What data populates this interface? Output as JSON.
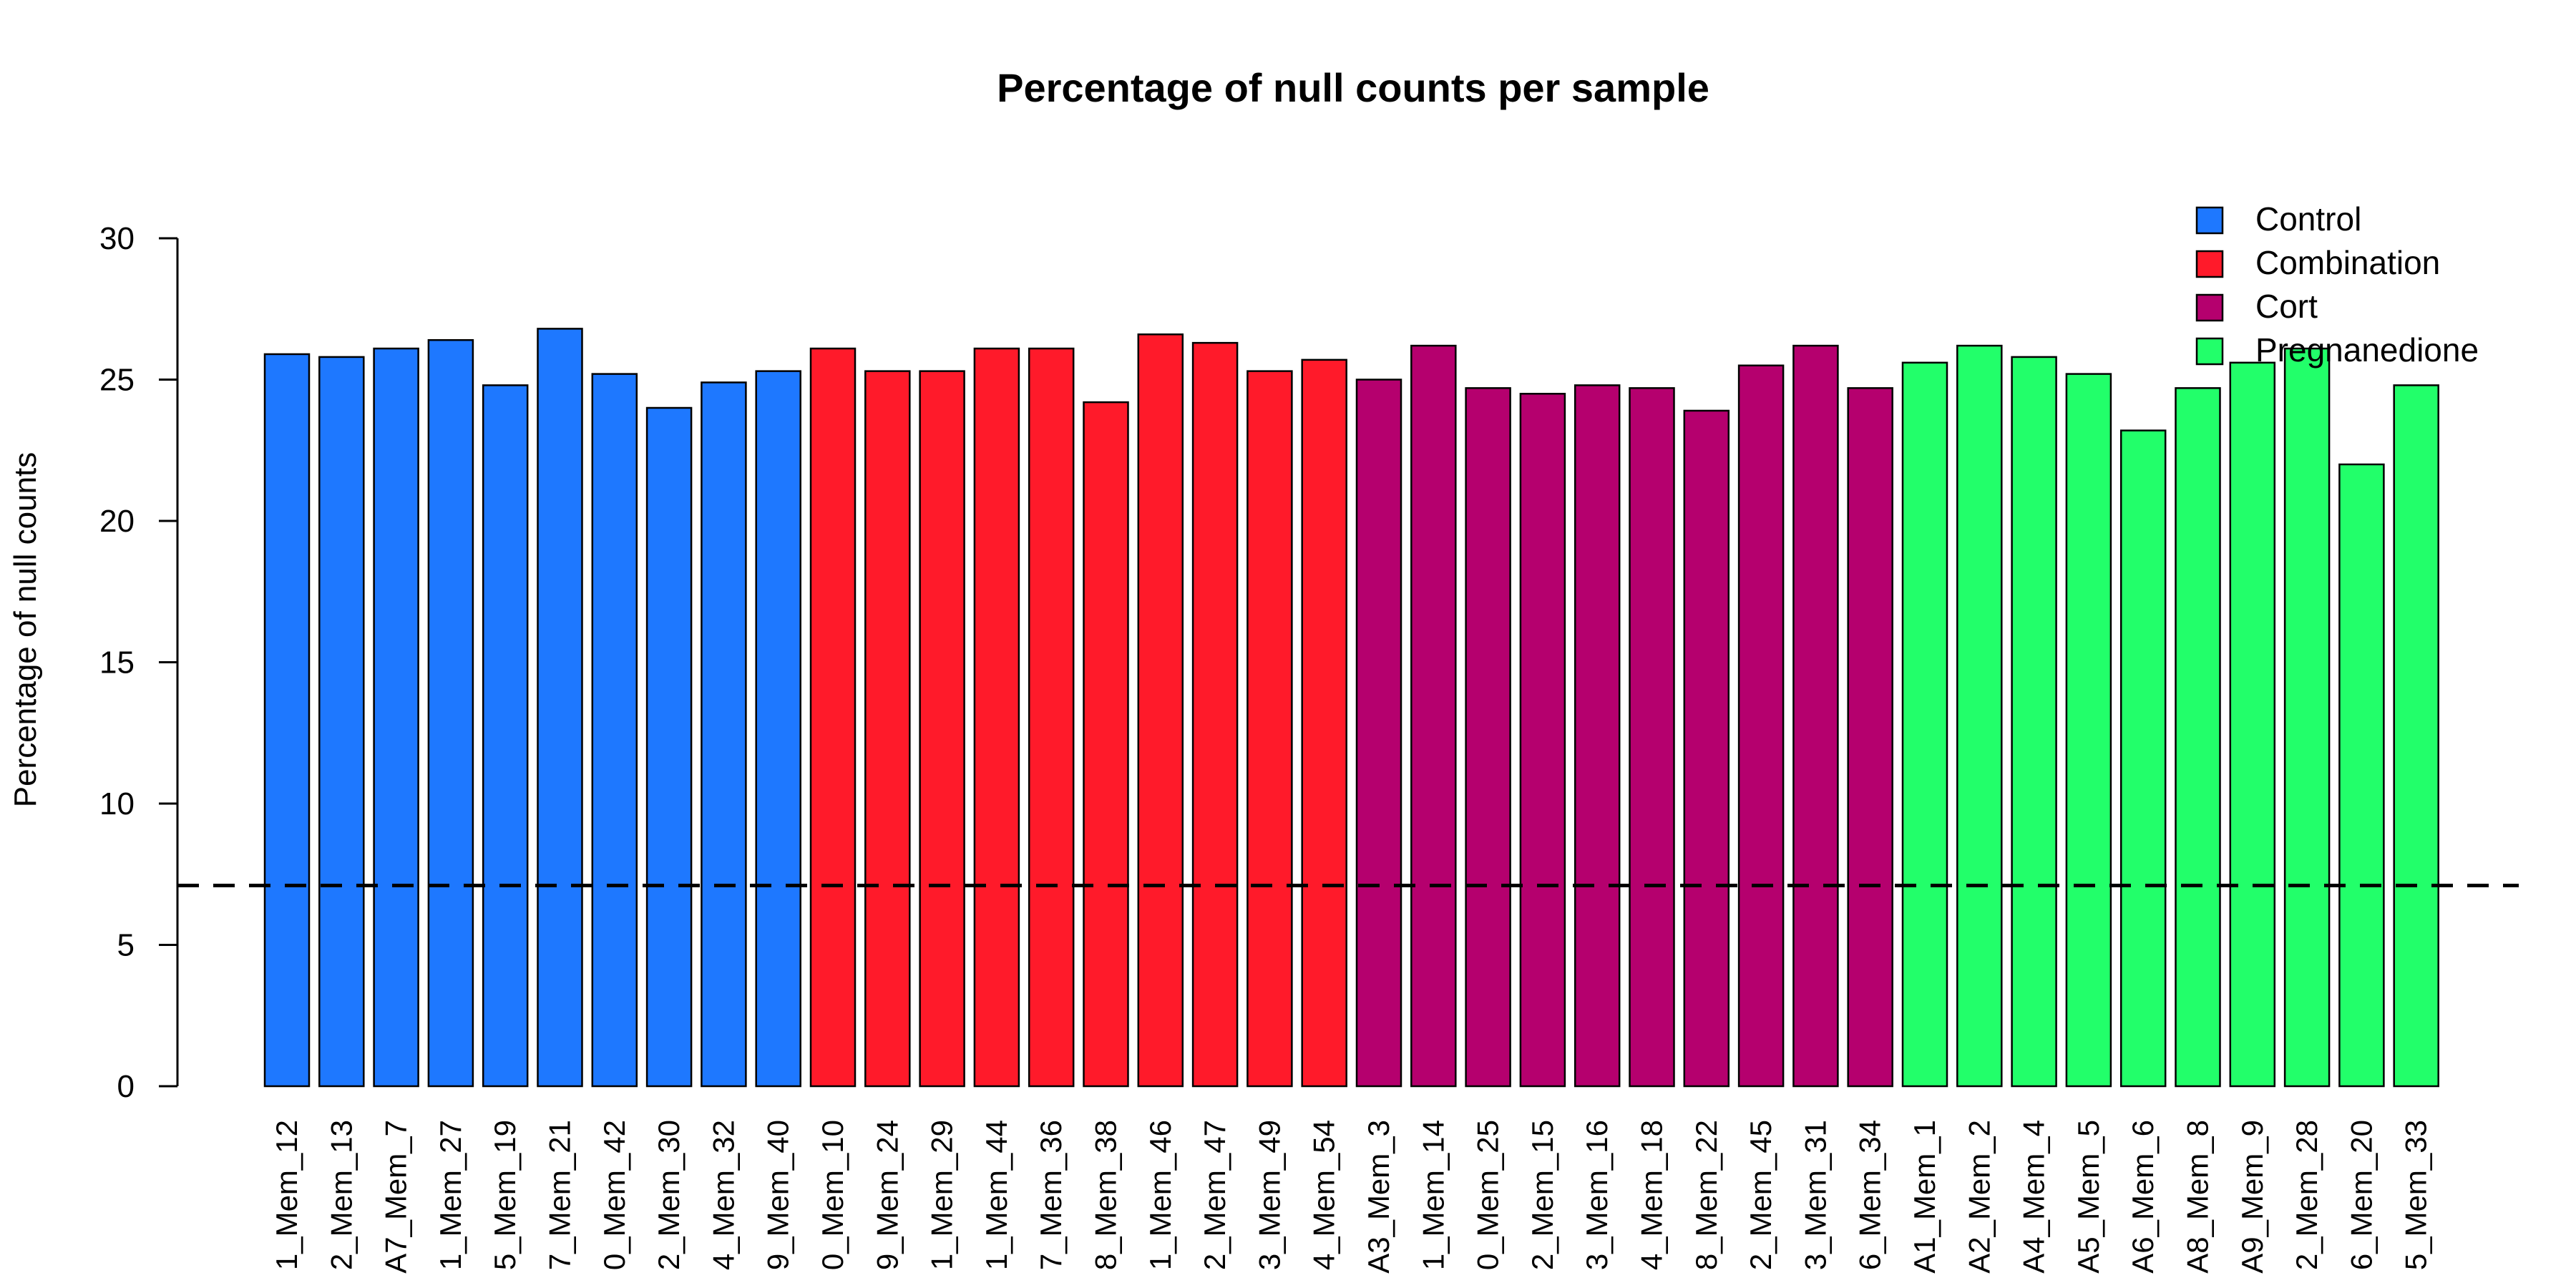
{
  "chart_data": {
    "type": "bar",
    "title": "Percentage of null counts per sample",
    "ylabel": "Percentage of null counts",
    "xlabel": "",
    "ylim": [
      0,
      30
    ],
    "yticks": [
      0,
      5,
      10,
      15,
      20,
      25,
      30
    ],
    "hline": 7.1,
    "legend_position": "top-right",
    "groups": [
      {
        "name": "Control",
        "color": "#1E78FF"
      },
      {
        "name": "Combination",
        "color": "#FF1A2A"
      },
      {
        "name": "Cort",
        "color": "#B5006E"
      },
      {
        "name": "Pregnanedione",
        "color": "#22FF6A"
      }
    ],
    "categories": [
      "1_Mem_12",
      "2_Mem_13",
      "A7_Mem_7",
      "1_Mem_27",
      "5_Mem_19",
      "7_Mem_21",
      "0_Mem_42",
      "2_Mem_30",
      "4_Mem_32",
      "9_Mem_40",
      "0_Mem_10",
      "9_Mem_24",
      "1_Mem_29",
      "1_Mem_44",
      "7_Mem_36",
      "8_Mem_38",
      "1_Mem_46",
      "2_Mem_47",
      "3_Mem_49",
      "4_Mem_54",
      "A3_Mem_3",
      "1_Mem_14",
      "0_Mem_25",
      "2_Mem_15",
      "3_Mem_16",
      "4_Mem_18",
      "8_Mem_22",
      "2_Mem_45",
      "3_Mem_31",
      "6_Mem_34",
      "A1_Mem_1",
      "A2_Mem_2",
      "A4_Mem_4",
      "A5_Mem_5",
      "A6_Mem_6",
      "A8_Mem_8",
      "A9_Mem_9",
      "2_Mem_28",
      "6_Mem_20",
      "5_Mem_33"
    ],
    "values": [
      25.9,
      25.8,
      26.1,
      26.4,
      24.8,
      26.8,
      25.2,
      24.0,
      24.9,
      25.3,
      26.1,
      25.3,
      25.3,
      26.1,
      26.1,
      24.2,
      26.6,
      26.3,
      25.3,
      25.7,
      25.0,
      26.2,
      24.7,
      24.5,
      24.8,
      24.7,
      23.9,
      25.5,
      26.2,
      24.7,
      25.6,
      26.2,
      25.8,
      25.2,
      23.2,
      24.7,
      25.6,
      26.1,
      22.0,
      24.8
    ],
    "group_index": [
      0,
      0,
      0,
      0,
      0,
      0,
      0,
      0,
      0,
      0,
      1,
      1,
      1,
      1,
      1,
      1,
      1,
      1,
      1,
      1,
      2,
      2,
      2,
      2,
      2,
      2,
      2,
      2,
      2,
      2,
      3,
      3,
      3,
      3,
      3,
      3,
      3,
      3,
      3,
      3
    ]
  }
}
